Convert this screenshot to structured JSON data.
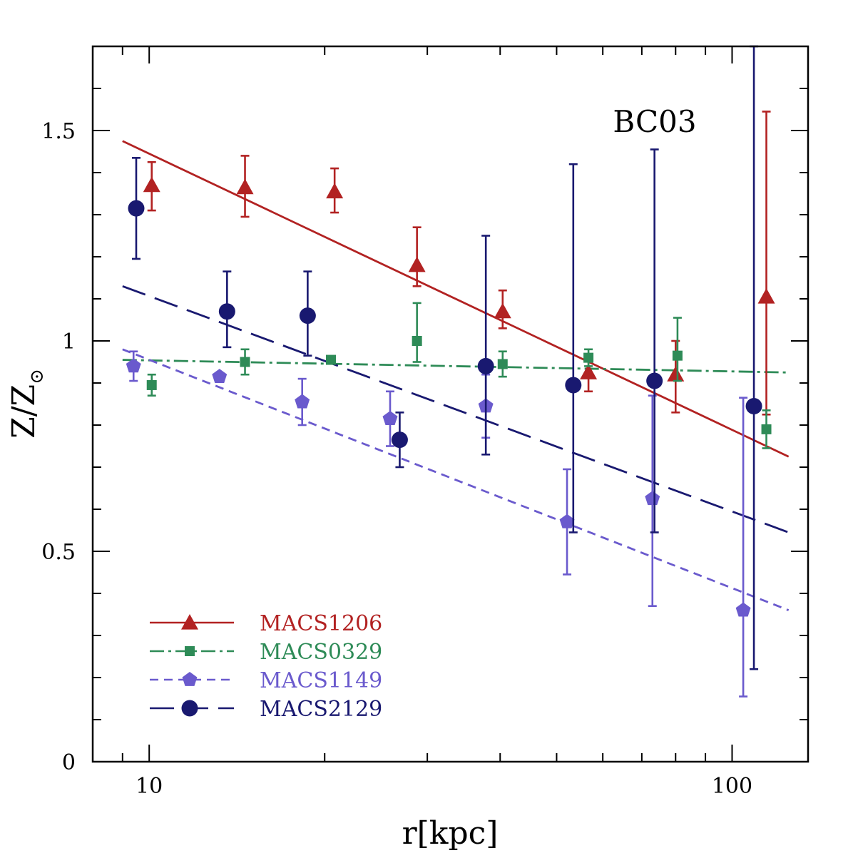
{
  "chart_data": {
    "type": "scatter",
    "title": "",
    "annotation": "BC03",
    "xlabel": "r[kpc]",
    "ylabel_main": "Z/Z",
    "ylabel_sub": "⊙",
    "xscale": "log",
    "xlim": [
      8.0,
      135
    ],
    "ylim": [
      0,
      1.7
    ],
    "x_ticks": [
      10,
      100
    ],
    "x_tick_labels": [
      "10",
      "100"
    ],
    "y_ticks": [
      0,
      0.5,
      1,
      1.5
    ],
    "y_tick_labels": [
      "0",
      "0.5",
      "1",
      "1.5"
    ],
    "legend_position": "bottom-left",
    "series": [
      {
        "name": "MACS1206",
        "color": "#b22222",
        "marker": "triangle",
        "line_style": "solid",
        "points": [
          {
            "x": 10.1,
            "y": 1.37,
            "err_lo": 0.06,
            "err_hi": 0.055
          },
          {
            "x": 14.6,
            "y": 1.365,
            "err_lo": 0.07,
            "err_hi": 0.075
          },
          {
            "x": 20.8,
            "y": 1.355,
            "err_lo": 0.05,
            "err_hi": 0.055
          },
          {
            "x": 28.8,
            "y": 1.18,
            "err_lo": 0.05,
            "err_hi": 0.09
          },
          {
            "x": 40.4,
            "y": 1.07,
            "err_lo": 0.04,
            "err_hi": 0.05
          },
          {
            "x": 56.7,
            "y": 0.925,
            "err_lo": 0.045,
            "err_hi": 0.04
          },
          {
            "x": 80.0,
            "y": 0.92,
            "err_lo": 0.09,
            "err_hi": 0.08
          },
          {
            "x": 114.5,
            "y": 1.105,
            "err_lo": 0.28,
            "err_hi": 0.44
          }
        ],
        "fit": {
          "x": [
            9.0,
            125.0
          ],
          "y": [
            1.475,
            0.725
          ]
        }
      },
      {
        "name": "MACS0329",
        "color": "#2e8b57",
        "marker": "square",
        "line_style": "dashdot",
        "points": [
          {
            "x": 10.1,
            "y": 0.895,
            "err_lo": 0.025,
            "err_hi": 0.025
          },
          {
            "x": 14.6,
            "y": 0.95,
            "err_lo": 0.03,
            "err_hi": 0.03
          },
          {
            "x": 20.5,
            "y": 0.955,
            "err_lo": 0.0,
            "err_hi": 0.0
          },
          {
            "x": 28.8,
            "y": 1.0,
            "err_lo": 0.05,
            "err_hi": 0.09
          },
          {
            "x": 40.4,
            "y": 0.945,
            "err_lo": 0.03,
            "err_hi": 0.03
          },
          {
            "x": 56.7,
            "y": 0.96,
            "err_lo": 0.02,
            "err_hi": 0.02
          },
          {
            "x": 80.6,
            "y": 0.965,
            "err_lo": 0.06,
            "err_hi": 0.09
          },
          {
            "x": 114.5,
            "y": 0.79,
            "err_lo": 0.045,
            "err_hi": 0.045
          }
        ],
        "fit": {
          "x": [
            9.0,
            125.0
          ],
          "y": [
            0.955,
            0.925
          ]
        }
      },
      {
        "name": "MACS1149",
        "color": "#6a5acd",
        "marker": "pentagon",
        "line_style": "dashed",
        "points": [
          {
            "x": 9.4,
            "y": 0.94,
            "err_lo": 0.035,
            "err_hi": 0.035
          },
          {
            "x": 13.2,
            "y": 0.915,
            "err_lo": 0.0,
            "err_hi": 0.0
          },
          {
            "x": 18.3,
            "y": 0.855,
            "err_lo": 0.055,
            "err_hi": 0.055
          },
          {
            "x": 25.9,
            "y": 0.815,
            "err_lo": 0.065,
            "err_hi": 0.065
          },
          {
            "x": 37.8,
            "y": 0.845,
            "err_lo": 0.075,
            "err_hi": 0.075
          },
          {
            "x": 52.1,
            "y": 0.57,
            "err_lo": 0.125,
            "err_hi": 0.125
          },
          {
            "x": 73.0,
            "y": 0.625,
            "err_lo": 0.255,
            "err_hi": 0.245
          },
          {
            "x": 104.5,
            "y": 0.36,
            "err_lo": 0.205,
            "err_hi": 0.505
          }
        ],
        "fit": {
          "x": [
            9.0,
            125.0
          ],
          "y": [
            0.98,
            0.36
          ]
        }
      },
      {
        "name": "MACS2129",
        "color": "#191970",
        "marker": "circle",
        "line_style": "longdash",
        "points": [
          {
            "x": 9.5,
            "y": 1.315,
            "err_lo": 0.12,
            "err_hi": 0.12
          },
          {
            "x": 13.6,
            "y": 1.07,
            "err_lo": 0.085,
            "err_hi": 0.095
          },
          {
            "x": 18.7,
            "y": 1.06,
            "err_lo": 0.095,
            "err_hi": 0.105
          },
          {
            "x": 26.9,
            "y": 0.765,
            "err_lo": 0.065,
            "err_hi": 0.065
          },
          {
            "x": 37.8,
            "y": 0.94,
            "err_lo": 0.21,
            "err_hi": 0.31
          },
          {
            "x": 53.4,
            "y": 0.895,
            "err_lo": 0.35,
            "err_hi": 0.525
          },
          {
            "x": 73.6,
            "y": 0.905,
            "err_lo": 0.36,
            "err_hi": 0.55
          },
          {
            "x": 109.0,
            "y": 0.845,
            "err_lo": 0.625,
            "err_hi": 0.855
          }
        ],
        "fit": {
          "x": [
            9.0,
            125.0
          ],
          "y": [
            1.13,
            0.545
          ]
        }
      }
    ]
  }
}
